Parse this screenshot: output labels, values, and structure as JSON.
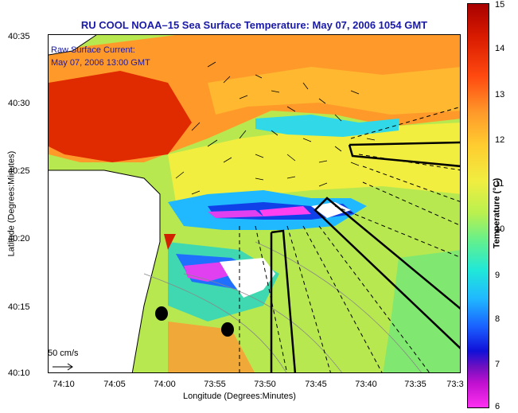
{
  "title": "RU COOL  NOAA–15  Sea Surface Temperature:  May 07, 2006 1054 GMT",
  "raw_current_line1": "Raw Surface Current:",
  "raw_current_line2": "May 07, 2006 13:00 GMT",
  "scale_label": "50 cm/s",
  "x_axis": {
    "title": "Longitude (Degrees:Minutes)",
    "ticks": [
      "74:10",
      "74:05",
      "74:00",
      "73:55",
      "73:50",
      "73:45",
      "73:40",
      "73:35",
      "73:3"
    ]
  },
  "y_axis": {
    "title": "Latitude (Degrees:Minutes)",
    "ticks": [
      "40:35",
      "40:30",
      "40:25",
      "40:20",
      "40:15",
      "40:10"
    ]
  },
  "colorbar": {
    "title": "Temperature (°C)",
    "ticks": [
      "15",
      "14",
      "13",
      "12",
      "11",
      "10",
      "9",
      "8",
      "7",
      "6"
    ]
  }
}
